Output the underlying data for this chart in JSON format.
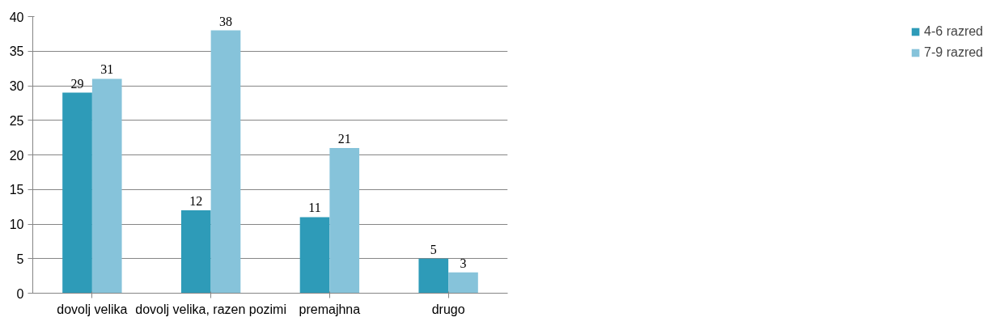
{
  "chart_data": {
    "type": "bar",
    "categories": [
      "dovolj velika",
      "dovolj velika, razen pozimi",
      "premajhna",
      "drugo"
    ],
    "series": [
      {
        "name": "4-6 razred",
        "color": "#2e9bb8",
        "values": [
          29,
          12,
          11,
          5
        ]
      },
      {
        "name": "7-9 razred",
        "color": "#86c3da",
        "values": [
          31,
          38,
          21,
          3
        ]
      }
    ],
    "ylim": [
      0,
      40
    ],
    "yticks": [
      0,
      5,
      10,
      15,
      20,
      25,
      30,
      35,
      40
    ],
    "grid": "y",
    "legend": "right",
    "data_labels": true
  }
}
